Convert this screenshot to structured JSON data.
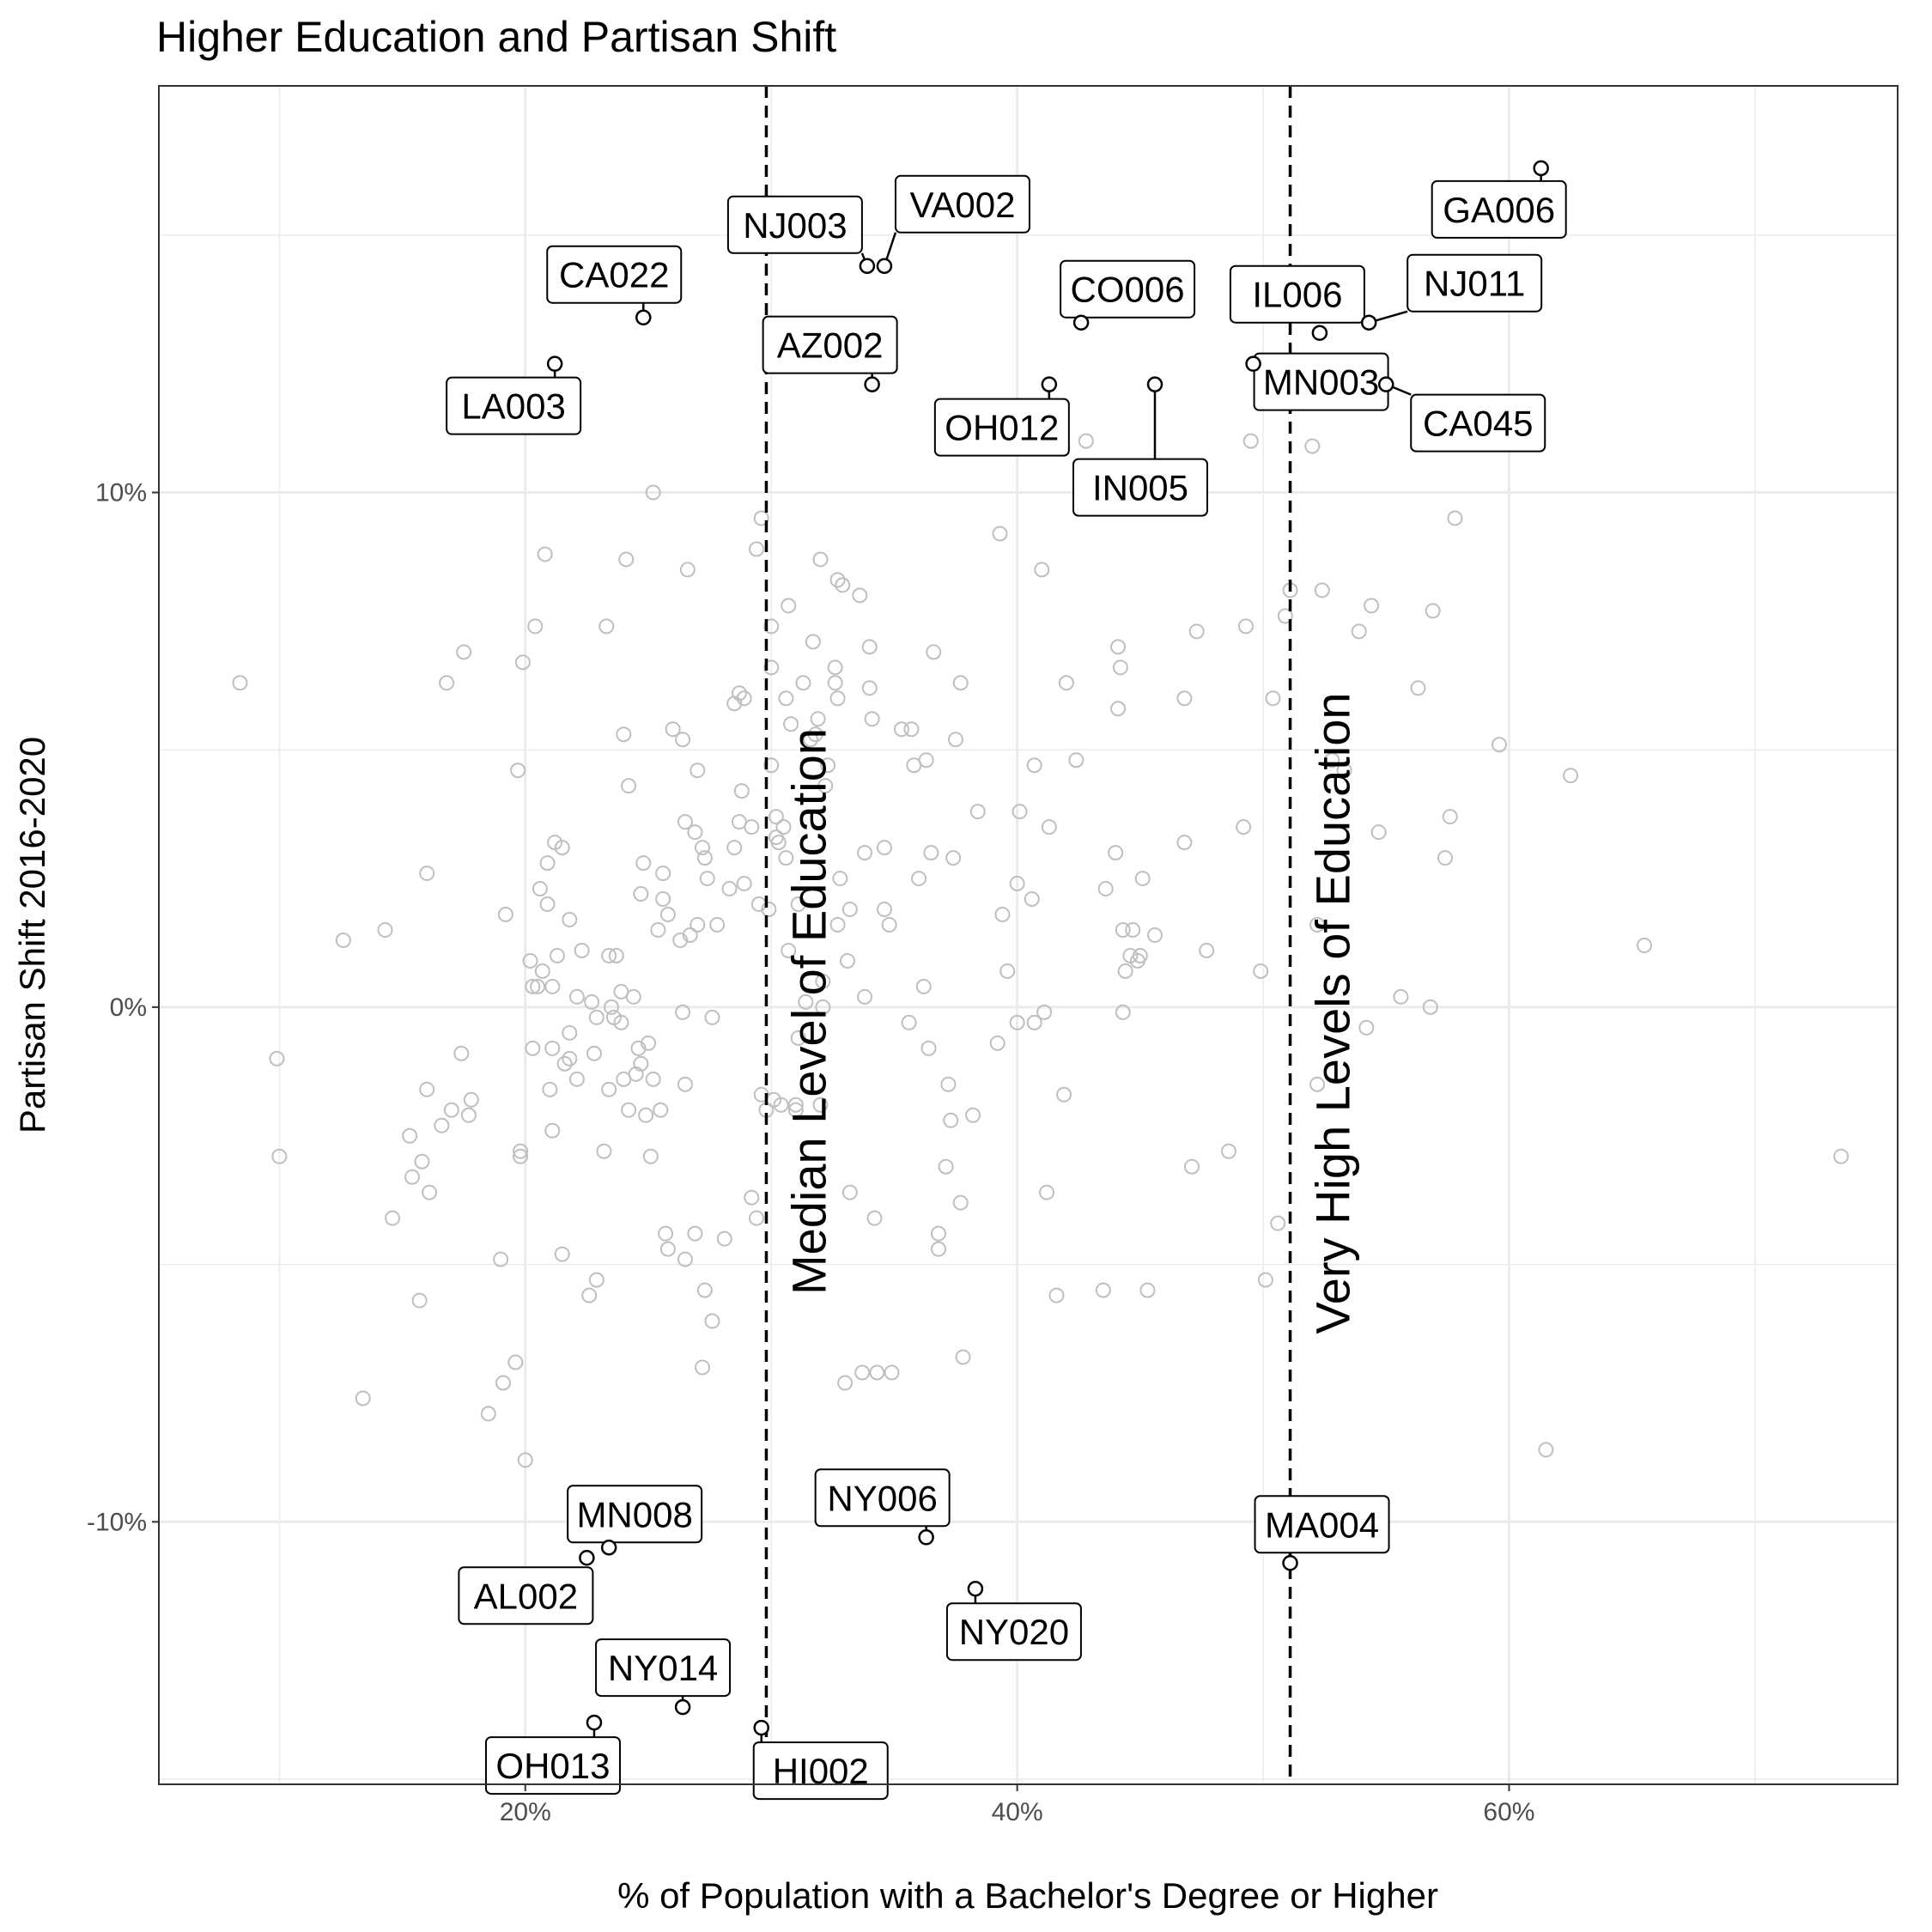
{
  "chart_data": {
    "type": "scatter",
    "title": "Higher Education and Partisan Shift",
    "xlabel": "% of Population with a Bachelor's Degree or Higher",
    "ylabel": "Partisan Shift 2016-2020",
    "xlim": [
      5.1,
      75.8
    ],
    "ylim": [
      -15.1,
      17.9
    ],
    "x_ticks": [
      {
        "value": 20,
        "label": "20%"
      },
      {
        "value": 40,
        "label": "40%"
      },
      {
        "value": 60,
        "label": "60%"
      }
    ],
    "y_ticks": [
      {
        "value": -10,
        "label": "-10%"
      },
      {
        "value": 0,
        "label": "0%"
      },
      {
        "value": 10,
        "label": "10%"
      }
    ],
    "x_minor": [
      10,
      30,
      50,
      70
    ],
    "y_minor": [
      -15,
      -5,
      5,
      15
    ],
    "grid": true,
    "vlines": [
      {
        "x": 29.8,
        "label": "Median Level of Education"
      },
      {
        "x": 51.1,
        "label": "Very High Levels of Education"
      }
    ],
    "background_points": [
      [
        8.4,
        6.3
      ],
      [
        9.9,
        -1.0
      ],
      [
        10.0,
        -2.9
      ],
      [
        12.6,
        1.3
      ],
      [
        13.4,
        -7.6
      ],
      [
        14.3,
        1.5
      ],
      [
        14.6,
        -4.1
      ],
      [
        15.3,
        -2.5
      ],
      [
        15.4,
        -3.3
      ],
      [
        15.7,
        -5.7
      ],
      [
        15.8,
        -3.0
      ],
      [
        16.0,
        -1.6
      ],
      [
        16.0,
        2.6
      ],
      [
        16.1,
        -3.6
      ],
      [
        16.6,
        -2.3
      ],
      [
        16.8,
        6.3
      ],
      [
        17.0,
        -2.0
      ],
      [
        17.4,
        -0.9
      ],
      [
        17.5,
        6.9
      ],
      [
        17.7,
        -2.1
      ],
      [
        17.8,
        -1.8
      ],
      [
        18.5,
        -7.9
      ],
      [
        19.0,
        -4.9
      ],
      [
        19.1,
        -7.3
      ],
      [
        19.2,
        1.8
      ],
      [
        19.6,
        -6.9
      ],
      [
        19.7,
        4.6
      ],
      [
        19.8,
        -2.9
      ],
      [
        19.8,
        -2.8
      ],
      [
        19.9,
        6.7
      ],
      [
        20.0,
        -8.8
      ],
      [
        20.2,
        0.9
      ],
      [
        20.3,
        -0.8
      ],
      [
        20.3,
        0.4
      ],
      [
        20.4,
        7.4
      ],
      [
        20.5,
        0.4
      ],
      [
        20.6,
        2.3
      ],
      [
        20.7,
        0.7
      ],
      [
        20.8,
        8.8
      ],
      [
        20.9,
        2.0
      ],
      [
        20.9,
        2.8
      ],
      [
        21.0,
        -1.6
      ],
      [
        21.1,
        -2.4
      ],
      [
        21.1,
        0.4
      ],
      [
        21.1,
        -0.8
      ],
      [
        21.2,
        3.2
      ],
      [
        21.3,
        1.0
      ],
      [
        21.5,
        -4.8
      ],
      [
        21.5,
        3.1
      ],
      [
        21.6,
        -1.1
      ],
      [
        21.8,
        -1.0
      ],
      [
        21.8,
        1.7
      ],
      [
        21.8,
        -0.5
      ],
      [
        22.1,
        -1.4
      ],
      [
        22.1,
        0.2
      ],
      [
        22.3,
        1.1
      ],
      [
        22.6,
        -5.6
      ],
      [
        22.7,
        0.1
      ],
      [
        22.8,
        -0.9
      ],
      [
        22.9,
        -5.3
      ],
      [
        22.9,
        -0.2
      ],
      [
        23.2,
        -2.8
      ],
      [
        23.3,
        7.4
      ],
      [
        23.4,
        -1.6
      ],
      [
        23.4,
        1.0
      ],
      [
        23.5,
        -0.0
      ],
      [
        23.6,
        -0.2
      ],
      [
        23.7,
        1.0
      ],
      [
        23.9,
        0.3
      ],
      [
        23.9,
        -0.3
      ],
      [
        24.0,
        -1.4
      ],
      [
        24.0,
        5.3
      ],
      [
        24.1,
        8.7
      ],
      [
        24.2,
        -2.0
      ],
      [
        24.2,
        4.3
      ],
      [
        24.4,
        0.2
      ],
      [
        24.5,
        -1.3
      ],
      [
        24.6,
        -0.8
      ],
      [
        24.7,
        -1.1
      ],
      [
        24.7,
        2.2
      ],
      [
        24.8,
        2.8
      ],
      [
        24.9,
        -2.1
      ],
      [
        25.0,
        -0.7
      ],
      [
        25.1,
        -2.9
      ],
      [
        25.2,
        -1.4
      ],
      [
        25.2,
        10.0
      ],
      [
        25.4,
        1.5
      ],
      [
        25.5,
        -2.0
      ],
      [
        25.6,
        2.6
      ],
      [
        25.6,
        2.1
      ],
      [
        25.7,
        -4.4
      ],
      [
        25.8,
        1.8
      ],
      [
        25.8,
        -4.7
      ],
      [
        26.0,
        5.4
      ],
      [
        26.3,
        1.3
      ],
      [
        26.4,
        -0.1
      ],
      [
        26.4,
        5.2
      ],
      [
        26.5,
        -1.5
      ],
      [
        26.5,
        3.6
      ],
      [
        26.5,
        -4.9
      ],
      [
        26.6,
        8.5
      ],
      [
        26.7,
        1.4
      ],
      [
        26.9,
        -4.4
      ],
      [
        26.9,
        3.4
      ],
      [
        27.0,
        4.6
      ],
      [
        27.0,
        1.6
      ],
      [
        27.2,
        -7.0
      ],
      [
        27.2,
        3.1
      ],
      [
        27.3,
        -5.5
      ],
      [
        27.3,
        2.9
      ],
      [
        27.4,
        2.5
      ],
      [
        27.6,
        -6.1
      ],
      [
        27.6,
        -0.2
      ],
      [
        27.8,
        1.6
      ],
      [
        28.1,
        -4.5
      ],
      [
        28.3,
        2.3
      ],
      [
        28.5,
        5.9
      ],
      [
        28.5,
        3.1
      ],
      [
        28.7,
        3.6
      ],
      [
        28.7,
        6.1
      ],
      [
        28.8,
        4.2
      ],
      [
        28.9,
        6.0
      ],
      [
        28.9,
        2.4
      ],
      [
        29.2,
        3.5
      ],
      [
        29.2,
        -3.7
      ],
      [
        29.4,
        -4.1
      ],
      [
        29.4,
        8.9
      ],
      [
        29.5,
        2.0
      ],
      [
        29.6,
        -1.7
      ],
      [
        29.6,
        9.5
      ],
      [
        29.8,
        -2.0
      ],
      [
        29.9,
        1.9
      ],
      [
        30.0,
        6.6
      ],
      [
        30.0,
        4.7
      ],
      [
        30.0,
        7.4
      ],
      [
        30.1,
        -1.8
      ],
      [
        30.2,
        3.3
      ],
      [
        30.2,
        3.7
      ],
      [
        30.3,
        3.2
      ],
      [
        30.4,
        -1.9
      ],
      [
        30.5,
        3.5
      ],
      [
        30.6,
        6.0
      ],
      [
        30.6,
        2.9
      ],
      [
        30.7,
        7.8
      ],
      [
        30.7,
        1.1
      ],
      [
        30.8,
        5.5
      ],
      [
        31.0,
        -1.9
      ],
      [
        31.0,
        -2.0
      ],
      [
        31.1,
        2.0
      ],
      [
        31.1,
        -0.6
      ],
      [
        31.3,
        6.3
      ],
      [
        31.4,
        0.1
      ],
      [
        31.6,
        5.2
      ],
      [
        31.7,
        7.1
      ],
      [
        31.8,
        5.3
      ],
      [
        31.9,
        5.6
      ],
      [
        32.0,
        8.7
      ],
      [
        32.0,
        -1.9
      ],
      [
        32.1,
        0.5
      ],
      [
        32.1,
        0.0
      ],
      [
        32.2,
        4.3
      ],
      [
        32.3,
        4.7
      ],
      [
        32.6,
        6.6
      ],
      [
        32.6,
        6.3
      ],
      [
        32.7,
        1.6
      ],
      [
        32.7,
        6.0
      ],
      [
        32.7,
        8.3
      ],
      [
        32.8,
        2.5
      ],
      [
        32.9,
        8.2
      ],
      [
        33.0,
        -7.3
      ],
      [
        33.1,
        0.9
      ],
      [
        33.2,
        -3.6
      ],
      [
        33.2,
        1.9
      ],
      [
        33.6,
        8.0
      ],
      [
        33.7,
        -7.1
      ],
      [
        33.8,
        3.0
      ],
      [
        33.8,
        0.2
      ],
      [
        34.0,
        7.0
      ],
      [
        34.0,
        6.2
      ],
      [
        34.1,
        5.6
      ],
      [
        34.2,
        -4.1
      ],
      [
        34.3,
        -7.1
      ],
      [
        34.6,
        3.1
      ],
      [
        34.6,
        1.9
      ],
      [
        34.8,
        1.6
      ],
      [
        34.9,
        -7.1
      ],
      [
        35.3,
        5.4
      ],
      [
        35.6,
        -0.3
      ],
      [
        35.7,
        5.4
      ],
      [
        35.8,
        4.7
      ],
      [
        36.0,
        2.5
      ],
      [
        36.2,
        0.4
      ],
      [
        36.3,
        4.8
      ],
      [
        36.4,
        -0.8
      ],
      [
        36.5,
        3.0
      ],
      [
        36.6,
        6.9
      ],
      [
        36.8,
        -4.4
      ],
      [
        36.8,
        -4.7
      ],
      [
        37.1,
        -3.1
      ],
      [
        37.2,
        -1.5
      ],
      [
        37.3,
        -2.2
      ],
      [
        37.4,
        2.9
      ],
      [
        37.5,
        5.2
      ],
      [
        37.7,
        -3.8
      ],
      [
        37.7,
        6.3
      ],
      [
        37.8,
        -6.8
      ],
      [
        38.2,
        -2.1
      ],
      [
        38.4,
        3.8
      ],
      [
        39.2,
        -0.7
      ],
      [
        39.3,
        9.2
      ],
      [
        39.4,
        1.8
      ],
      [
        39.6,
        0.7
      ],
      [
        40.0,
        2.4
      ],
      [
        40.0,
        -0.3
      ],
      [
        40.1,
        3.8
      ],
      [
        40.6,
        2.1
      ],
      [
        40.7,
        4.7
      ],
      [
        40.7,
        -0.3
      ],
      [
        40.9,
        11.0
      ],
      [
        41.0,
        8.5
      ],
      [
        41.1,
        -0.1
      ],
      [
        41.2,
        -3.6
      ],
      [
        41.3,
        3.5
      ],
      [
        41.4,
        10.9
      ],
      [
        41.6,
        -5.6
      ],
      [
        41.6,
        10.9
      ],
      [
        41.9,
        -1.7
      ],
      [
        42.0,
        6.3
      ],
      [
        42.4,
        4.8
      ],
      [
        42.8,
        11.0
      ],
      [
        43.2,
        9.9
      ],
      [
        43.5,
        -5.5
      ],
      [
        43.6,
        2.3
      ],
      [
        44.0,
        3.0
      ],
      [
        44.1,
        7.0
      ],
      [
        44.1,
        5.8
      ],
      [
        44.2,
        6.6
      ],
      [
        44.3,
        1.5
      ],
      [
        44.3,
        -0.1
      ],
      [
        44.4,
        0.7
      ],
      [
        44.6,
        1.0
      ],
      [
        44.7,
        1.5
      ],
      [
        44.9,
        0.9
      ],
      [
        45.0,
        1.0
      ],
      [
        45.1,
        2.5
      ],
      [
        45.3,
        -5.5
      ],
      [
        45.6,
        1.4
      ],
      [
        46.8,
        6.0
      ],
      [
        46.8,
        3.2
      ],
      [
        47.1,
        -3.1
      ],
      [
        47.3,
        7.3
      ],
      [
        47.7,
        1.1
      ],
      [
        48.6,
        -2.8
      ],
      [
        49.2,
        3.5
      ],
      [
        49.3,
        7.4
      ],
      [
        49.5,
        11.0
      ],
      [
        49.9,
        0.7
      ],
      [
        50.1,
        -5.3
      ],
      [
        50.4,
        6.0
      ],
      [
        50.6,
        -4.2
      ],
      [
        50.9,
        7.6
      ],
      [
        51.1,
        8.1
      ],
      [
        52.0,
        10.9
      ],
      [
        52.2,
        1.6
      ],
      [
        52.2,
        -1.5
      ],
      [
        52.4,
        8.1
      ],
      [
        52.8,
        4.8
      ],
      [
        53.3,
        4.6
      ],
      [
        53.9,
        7.3
      ],
      [
        54.2,
        -0.4
      ],
      [
        54.4,
        7.8
      ],
      [
        54.7,
        3.4
      ],
      [
        55.6,
        0.2
      ],
      [
        56.3,
        6.2
      ],
      [
        56.8,
        0.0
      ],
      [
        56.9,
        7.7
      ],
      [
        57.4,
        2.9
      ],
      [
        57.6,
        3.7
      ],
      [
        57.8,
        9.5
      ],
      [
        59.6,
        5.1
      ],
      [
        61.5,
        -8.6
      ],
      [
        62.5,
        4.5
      ],
      [
        65.5,
        1.2
      ],
      [
        73.5,
        -2.9
      ]
    ],
    "labeled_points": [
      {
        "label": "NJ003",
        "x": 33.9,
        "y": 14.4
      },
      {
        "label": "VA002",
        "x": 34.6,
        "y": 14.4
      },
      {
        "label": "CA022",
        "x": 24.8,
        "y": 13.4
      },
      {
        "label": "LA003",
        "x": 21.2,
        "y": 12.5
      },
      {
        "label": "AZ002",
        "x": 34.1,
        "y": 12.1
      },
      {
        "label": "CO006",
        "x": 42.6,
        "y": 13.3
      },
      {
        "label": "OH012",
        "x": 41.3,
        "y": 12.1
      },
      {
        "label": "IN005",
        "x": 45.6,
        "y": 12.1
      },
      {
        "label": "MN003",
        "x": 49.6,
        "y": 12.5
      },
      {
        "label": "IL006",
        "x": 52.3,
        "y": 13.1
      },
      {
        "label": "NJ011",
        "x": 54.3,
        "y": 13.3
      },
      {
        "label": "CA045",
        "x": 55.0,
        "y": 12.1
      },
      {
        "label": "GA006",
        "x": 61.3,
        "y": 16.3
      },
      {
        "label": "MN008",
        "x": 23.4,
        "y": -10.5
      },
      {
        "label": "AL002",
        "x": 22.5,
        "y": -10.7
      },
      {
        "label": "NY006",
        "x": 36.3,
        "y": -10.3
      },
      {
        "label": "NY020",
        "x": 38.3,
        "y": -11.3
      },
      {
        "label": "MA004",
        "x": 51.1,
        "y": -10.8
      },
      {
        "label": "NY014",
        "x": 26.4,
        "y": -13.6
      },
      {
        "label": "OH013",
        "x": 22.8,
        "y": -13.9
      },
      {
        "label": "HI002",
        "x": 29.6,
        "y": -14.0
      }
    ]
  },
  "colors": {
    "background_point": "#bfbfbf",
    "highlight_point": "#000000",
    "gridline": "#ebebeb",
    "panel_border": "#333333"
  }
}
